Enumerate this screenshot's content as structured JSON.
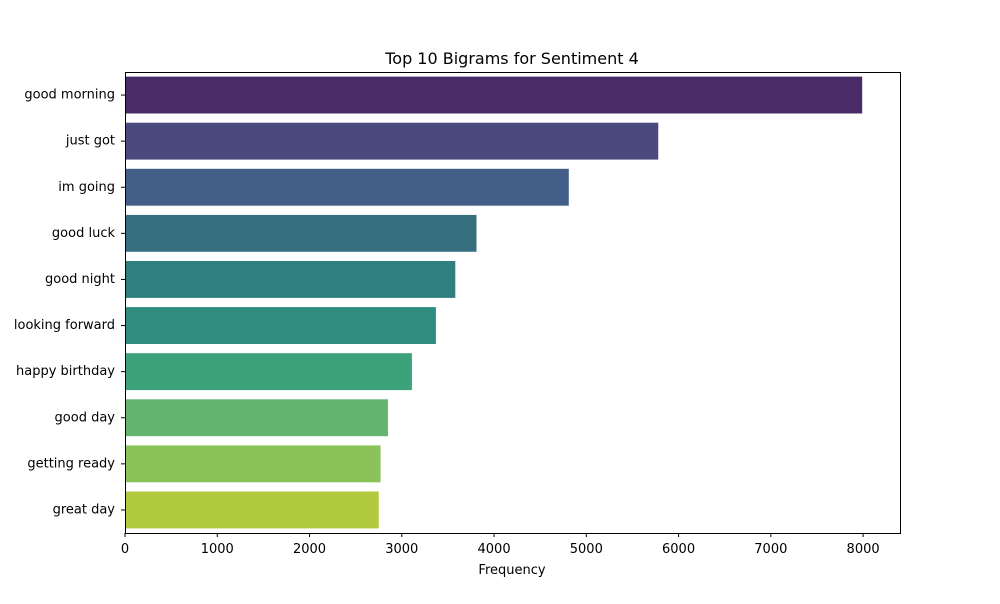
{
  "chart_data": {
    "type": "bar",
    "orientation": "horizontal",
    "title": "Top 10 Bigrams for Sentiment 4",
    "xlabel": "Frequency",
    "ylabel": "",
    "categories": [
      "good morning",
      "just got",
      "im going",
      "good luck",
      "good night",
      "looking forward",
      "happy birthday",
      "good day",
      "getting ready",
      "great day"
    ],
    "values": [
      7990,
      5780,
      4810,
      3810,
      3580,
      3370,
      3110,
      2850,
      2770,
      2750
    ],
    "colors": [
      "#482b67",
      "#4a4a7f",
      "#435e87",
      "#376f81",
      "#2f7e80",
      "#2e8d7e",
      "#3ca27a",
      "#62b46e",
      "#8ac35a",
      "#b2ca3d"
    ],
    "xlim": [
      0,
      8400
    ],
    "xticks": [
      0,
      1000,
      2000,
      3000,
      4000,
      5000,
      6000,
      7000,
      8000
    ],
    "grid": false,
    "legend": "none"
  }
}
